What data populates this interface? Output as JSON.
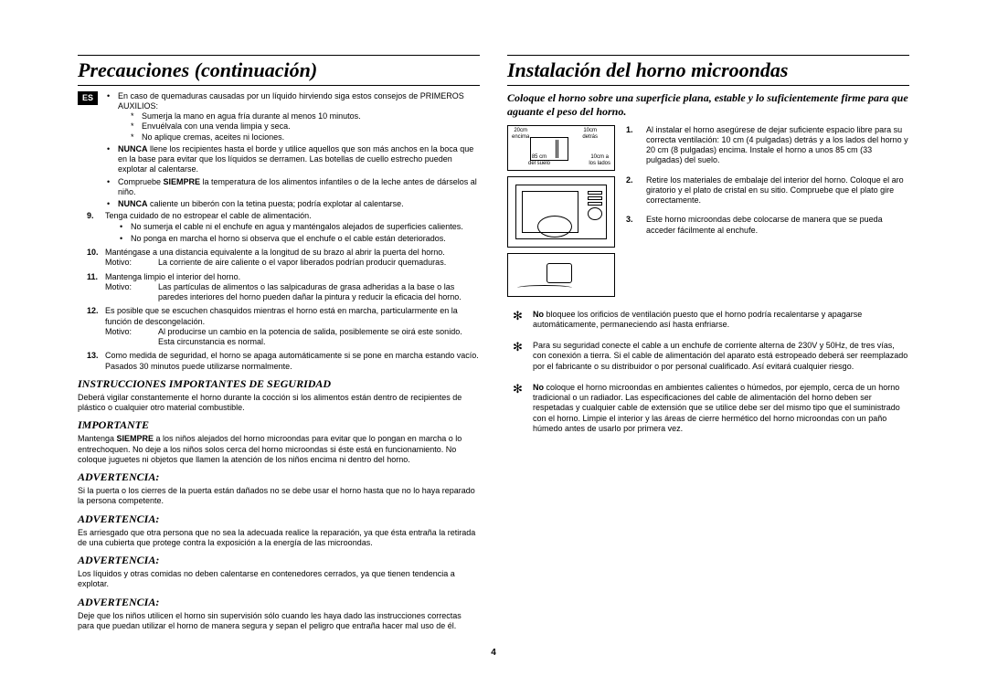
{
  "lang_badge": "ES",
  "page_number": "4",
  "left": {
    "title": "Precauciones (continuación)",
    "burn_intro": "En caso de quemaduras causadas por un líquido hirviendo siga estos consejos de PRIMEROS AUXILIOS:",
    "burn_steps": [
      "Sumerja la mano en agua fría durante al menos 10 minutos.",
      "Envuélvala con una venda limpia y seca.",
      "No aplique cremas, aceites ni lociones."
    ],
    "bullets_after_burn": [
      "<b>NUNCA</b> llene los recipientes hasta el borde y utilice aquellos que son más anchos en la boca que en la base para evitar que los líquidos se derramen. Las botellas de cuello estrecho pueden explotar al calentarse.",
      "Compruebe <b>SIEMPRE</b> la temperatura de los alimentos infantiles o de la leche antes de dárselos al niño.",
      "<b>NUNCA</b> caliente un biberón con la tetina puesta; podría explotar al calentarse."
    ],
    "item9": {
      "n": "9.",
      "text": "Tenga cuidado de no estropear el cable de alimentación.",
      "subs": [
        "No sumerja el cable ni el enchufe en agua y manténgalos alejados de superficies calientes.",
        "No ponga en marcha el horno si observa que el enchufe o el cable están deteriorados."
      ]
    },
    "item10": {
      "n": "10.",
      "text": "Manténgase a una distancia equivalente a la longitud de su brazo al abrir la puerta del horno.",
      "motivo_label": "Motivo:",
      "motivo": "La corriente de aire caliente o el vapor liberados podrían producir quemaduras."
    },
    "item11": {
      "n": "11.",
      "text": "Mantenga limpio el interior del horno.",
      "motivo_label": "Motivo:",
      "motivo": "Las partículas de alimentos o las salpicaduras de grasa adheridas a la base o las paredes interiores del horno pueden dañar la pintura y reducir la eficacia del horno."
    },
    "item12": {
      "n": "12.",
      "text": "Es posible que se escuchen chasquidos mientras el horno está en marcha, particularmente en la función de descongelación.",
      "motivo_label": "Motivo:",
      "motivo": "Al producirse un cambio en la potencia de salida, posiblemente se oirá este sonido. Esta circunstancia es normal."
    },
    "item13": {
      "n": "13.",
      "text": "Como medida de seguridad, el horno se apaga automáticamente si se pone en marcha estando vacío. Pasados 30 minutos puede utilizarse normalmente."
    },
    "sec_safety_title": "INSTRUCCIONES IMPORTANTES DE SEGURIDAD",
    "sec_safety_text": "Deberá vigilar constantemente el horno durante la cocción si los alimentos están dentro de recipientes de plástico o cualquier otro material combustible.",
    "sec_important_title": "IMPORTANTE",
    "sec_important_text": "Mantenga <b>SIEMPRE</b> a los niños alejados del horno microondas para evitar que lo pongan en marcha o lo entrechoquen. No deje a los niños solos cerca del horno microondas si éste está en funcionamiento. No coloque juguetes ni objetos que llamen la atención de los niños encima ni dentro del horno.",
    "warn_title": "ADVERTENCIA:",
    "warn1": "Si la puerta o los cierres de la puerta están dañados no se debe usar el horno hasta que no lo haya reparado la persona competente.",
    "warn2": "Es arriesgado que otra persona que no sea la adecuada realice la reparación, ya que ésta entraña la retirada de una cubierta que protege contra la exposición a la energía de las microondas.",
    "warn3": "Los líquidos y otras comidas no deben calentarse en contenedores cerrados, ya que tienen tendencia a explotar.",
    "warn4": "Deje que los niños utilicen el horno sin supervisión sólo cuando les haya dado las instrucciones correctas para que puedan utilizar el horno de manera segura y sepan el peligro que entraña hacer mal uso de él."
  },
  "right": {
    "title": "Instalación del horno microondas",
    "intro": "Coloque el horno sobre una superficie plana, estable y lo suficientemente firme para que aguante el peso del horno.",
    "diag1": {
      "t1": "20cm\nencima",
      "t2": "10cm\ndetrás",
      "t3": "85 cm\ndel suelo",
      "t4": "10cm a\nlos lados"
    },
    "steps": [
      "Al instalar el horno asegúrese de dejar suficiente espacio libre para su correcta ventilación: 10 cm (4 pulgadas) detrás y a los lados del horno y 20 cm (8 pulgadas) encima. Instale el horno a unos 85 cm (33 pulgadas) del suelo.",
      "Retire los materiales de embalaje del interior del horno. Coloque el aro giratorio y el plato de cristal en su sitio. Compruebe que el plato gire correctamente.",
      "Este horno microondas debe colocarse de manera que se pueda acceder fácilmente al enchufe."
    ],
    "stars": [
      "<b>No</b> bloquee los orificios de ventilación puesto que el horno podría recalentarse y apagarse automáticamente, permaneciendo así hasta enfriarse.",
      "Para su seguridad conecte el cable a un enchufe de corriente alterna de 230V y 50Hz, de tres vías, con conexión a tierra. Si el cable de alimentación del aparato está estropeado deberá ser reemplazado por el fabricante o su distribuidor o por personal cualificado. Así evitará cualquier riesgo.",
      "<b>No</b> coloque el horno microondas en ambientes calientes o húmedos, por ejemplo, cerca de un horno tradicional o un radiador. Las especificaciones del cable de alimentación del horno deben ser respetadas y cualquier cable de extensión que se utilice debe ser del mismo tipo que el suministrado con el horno. Limpie el interior y las áreas de cierre hermético del horno microondas con un paño húmedo antes de usarlo por primera vez."
    ]
  }
}
